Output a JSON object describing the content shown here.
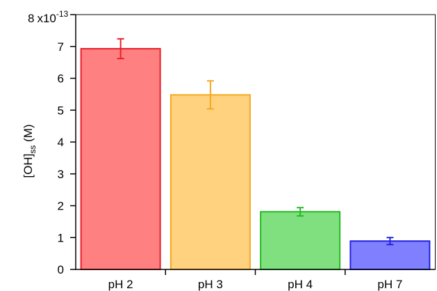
{
  "chart_data": {
    "type": "bar",
    "categories": [
      "pH 2",
      "pH 3",
      "pH 4",
      "pH 7"
    ],
    "values": [
      6.93,
      5.48,
      1.81,
      0.89
    ],
    "errors": [
      0.31,
      0.44,
      0.13,
      0.11
    ],
    "colors": {
      "fill": [
        "#ff8080",
        "#ffd280",
        "#80e080",
        "#8080ff"
      ],
      "stroke": [
        "#e8202a",
        "#f4a81c",
        "#22bb22",
        "#2020e0"
      ]
    },
    "ylabel_main": "[OH]",
    "ylabel_sub": "ss",
    "ylabel_unit": " (M)",
    "y_scale_label": "x10",
    "y_scale_exp": "-13",
    "ylim": [
      0,
      8
    ],
    "y_ticks": [
      "0",
      "1",
      "2",
      "3",
      "4",
      "5",
      "6",
      "7",
      "8"
    ],
    "grid": false
  }
}
